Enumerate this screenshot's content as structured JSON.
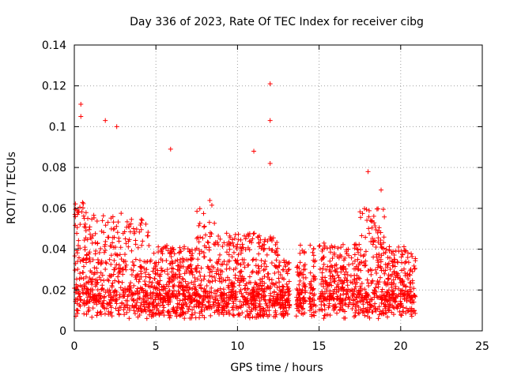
{
  "chart_data": {
    "type": "scatter",
    "title": "Day 336 of 2023, Rate Of TEC Index for receiver cibg",
    "xlabel": "GPS time / hours",
    "ylabel": "ROTI / TECUs",
    "xlim": [
      0,
      25
    ],
    "ylim": [
      0,
      0.14
    ],
    "x_ticks": [
      "0",
      "5",
      "10",
      "15",
      "20",
      "25"
    ],
    "y_ticks": [
      "0",
      "0.02",
      "0.04",
      "0.06",
      "0.08",
      "0.1",
      "0.12",
      "0.14"
    ],
    "grid": true,
    "marker": "plus",
    "color": "#ff0000",
    "data_coverage_hours": [
      0,
      20.9
    ],
    "gaps_hours": [
      [
        13.2,
        13.6
      ],
      [
        14.2,
        14.4
      ],
      [
        14.8,
        15.0
      ]
    ],
    "notable_points": [
      {
        "x": 0.4,
        "y": 0.111
      },
      {
        "x": 0.4,
        "y": 0.105
      },
      {
        "x": 2.6,
        "y": 0.1
      },
      {
        "x": 1.9,
        "y": 0.103
      },
      {
        "x": 5.9,
        "y": 0.089
      },
      {
        "x": 11.0,
        "y": 0.088
      },
      {
        "x": 12.0,
        "y": 0.121
      },
      {
        "x": 12.0,
        "y": 0.103
      },
      {
        "x": 12.0,
        "y": 0.082
      },
      {
        "x": 18.0,
        "y": 0.078
      },
      {
        "x": 18.8,
        "y": 0.069
      }
    ]
  }
}
